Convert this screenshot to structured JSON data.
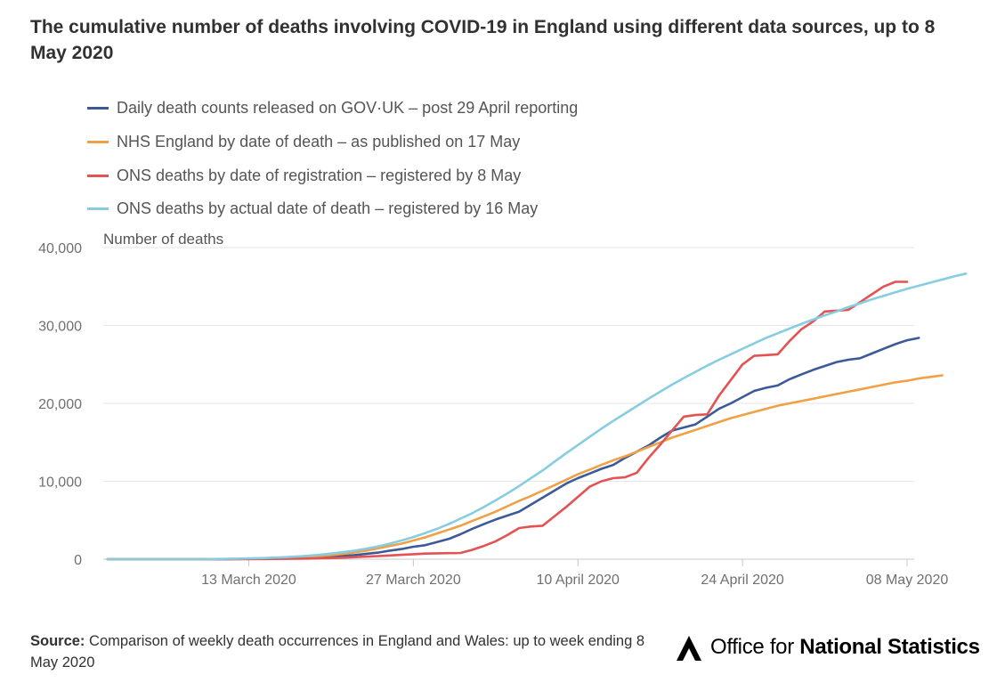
{
  "title": "The cumulative number of deaths involving COVID-19 in England using different data sources, up to 8 May 2020",
  "source": {
    "label": "Source:",
    "text": "Comparison of weekly death occurrences in England and Wales: up to week ending 8 May 2020"
  },
  "logo": {
    "part1": "Office for ",
    "part2": "National Statistics"
  },
  "chart_data": {
    "type": "line",
    "ylabel": "Number of deaths",
    "xlabel": "",
    "ylim": [
      0,
      40000
    ],
    "yticks": [
      0,
      10000,
      20000,
      30000,
      40000
    ],
    "ytick_labels": [
      "0",
      "10,000",
      "20,000",
      "30,000",
      "40,000"
    ],
    "xtick_labels": [
      "13 March 2020",
      "27 March 2020",
      "10 April 2020",
      "24 April 2020",
      "08 May 2020"
    ],
    "x_start": "2020-03-01",
    "x_end": "2020-05-08",
    "grid": true,
    "legend_position": "top-left",
    "series": [
      {
        "name": "Daily death counts released on GOV·UK – post 29 April reporting",
        "color": "#3c5a99",
        "start": "2020-03-01",
        "values": [
          0,
          0,
          0,
          0,
          0,
          0,
          0,
          0,
          0,
          0,
          10,
          20,
          40,
          60,
          80,
          100,
          130,
          180,
          250,
          330,
          420,
          530,
          700,
          850,
          1100,
          1300,
          1600,
          1800,
          2200,
          2600,
          3200,
          3900,
          4500,
          5100,
          5600,
          6100,
          7000,
          7900,
          8800,
          9700,
          10400,
          11000,
          11600,
          12100,
          13000,
          13800,
          14600,
          15600,
          16500,
          16900,
          17300,
          18300,
          19300,
          20000,
          20800,
          21600,
          22000,
          22300,
          23100,
          23700,
          24300,
          24800,
          25300,
          25600,
          25800,
          26400,
          27000,
          27600,
          28100,
          28400
        ]
      },
      {
        "name": "NHS England by date of death – as published on 17 May",
        "color": "#f0a045",
        "start": "2020-03-01",
        "values": [
          0,
          0,
          0,
          0,
          0,
          0,
          0,
          0,
          0,
          10,
          20,
          40,
          60,
          90,
          120,
          170,
          230,
          300,
          400,
          520,
          680,
          860,
          1100,
          1400,
          1700,
          2000,
          2400,
          2800,
          3300,
          3800,
          4300,
          4900,
          5500,
          6100,
          6800,
          7500,
          8100,
          8800,
          9500,
          10200,
          10900,
          11500,
          12100,
          12700,
          13200,
          13800,
          14400,
          15000,
          15600,
          16100,
          16600,
          17100,
          17600,
          18100,
          18500,
          18900,
          19300,
          19700,
          20000,
          20300,
          20600,
          20900,
          21200,
          21500,
          21800,
          22100,
          22400,
          22700,
          22900,
          23200,
          23400,
          23600
        ]
      },
      {
        "name": "ONS deaths by date of registration – registered by 8 May",
        "color": "#e35353",
        "start": "2020-03-01",
        "values": [
          0,
          0,
          0,
          0,
          0,
          0,
          0,
          0,
          0,
          0,
          0,
          5,
          10,
          20,
          30,
          45,
          60,
          80,
          110,
          150,
          200,
          260,
          330,
          400,
          480,
          560,
          640,
          720,
          760,
          780,
          800,
          1200,
          1700,
          2300,
          3100,
          4000,
          4200,
          4300,
          5500,
          6700,
          8000,
          9300,
          10000,
          10400,
          10500,
          11100,
          13000,
          14700,
          16500,
          18300,
          18500,
          18600,
          21000,
          23000,
          25000,
          26100,
          26200,
          26300,
          28000,
          29500,
          30500,
          31800,
          31900,
          32000,
          33000,
          34000,
          35000,
          35600,
          35600
        ]
      },
      {
        "name": "ONS deaths by actual date of death – registered by 16 May",
        "color": "#86cde2",
        "start": "2020-03-01",
        "values": [
          0,
          0,
          0,
          0,
          0,
          0,
          0,
          0,
          0,
          20,
          40,
          70,
          100,
          140,
          190,
          250,
          330,
          430,
          560,
          720,
          900,
          1100,
          1350,
          1650,
          2000,
          2400,
          2850,
          3350,
          3900,
          4500,
          5200,
          5900,
          6700,
          7550,
          8450,
          9400,
          10400,
          11400,
          12500,
          13600,
          14650,
          15700,
          16750,
          17750,
          18700,
          19650,
          20600,
          21500,
          22400,
          23250,
          24050,
          24850,
          25600,
          26300,
          27000,
          27700,
          28400,
          29000,
          29600,
          30200,
          30750,
          31300,
          31800,
          32350,
          32850,
          33350,
          33800,
          34250,
          34700,
          35100,
          35500,
          35900,
          36300,
          36650
        ]
      }
    ]
  }
}
